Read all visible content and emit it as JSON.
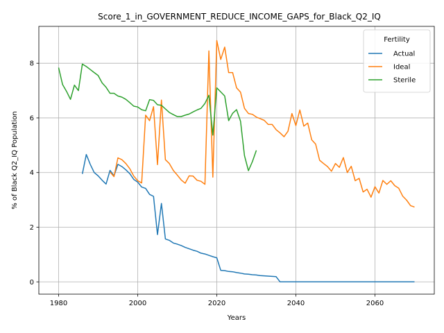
{
  "chart_data": {
    "type": "line",
    "title": "Score_1_in_GOVERNMENT_REDUCE_INCOME_GAPS_for_Black_Q2_IQ",
    "xlabel": "Years",
    "ylabel": "% of Black Q2_IQ Population",
    "xlim": [
      1975,
      2075
    ],
    "ylim": [
      -0.45,
      9.35
    ],
    "xticks": [
      1980,
      2000,
      2020,
      2040,
      2060
    ],
    "yticks": [
      0,
      2,
      4,
      6,
      8
    ],
    "grid": true,
    "legend": {
      "title": "Fertility",
      "placement": "top-right"
    },
    "series": [
      {
        "name": "Actual",
        "color": "#1f77b4",
        "points": [
          [
            1986,
            3.95
          ],
          [
            1987,
            4.66
          ],
          [
            1988,
            4.3
          ],
          [
            1989,
            4.0
          ],
          [
            1990,
            3.88
          ],
          [
            1991,
            3.72
          ],
          [
            1992,
            3.58
          ],
          [
            1993,
            4.08
          ],
          [
            1994,
            3.88
          ],
          [
            1995,
            4.3
          ],
          [
            1996,
            4.22
          ],
          [
            1997,
            4.1
          ],
          [
            1998,
            3.96
          ],
          [
            1999,
            3.75
          ],
          [
            2000,
            3.65
          ],
          [
            2001,
            3.47
          ],
          [
            2002,
            3.42
          ],
          [
            2003,
            3.2
          ],
          [
            2004,
            3.13
          ],
          [
            2005,
            1.73
          ],
          [
            2006,
            2.87
          ],
          [
            2007,
            1.57
          ],
          [
            2008,
            1.52
          ],
          [
            2009,
            1.42
          ],
          [
            2010,
            1.38
          ],
          [
            2011,
            1.33
          ],
          [
            2012,
            1.26
          ],
          [
            2013,
            1.21
          ],
          [
            2014,
            1.16
          ],
          [
            2015,
            1.12
          ],
          [
            2016,
            1.05
          ],
          [
            2017,
            1.02
          ],
          [
            2018,
            0.97
          ],
          [
            2019,
            0.92
          ],
          [
            2020,
            0.88
          ],
          [
            2021,
            0.42
          ],
          [
            2022,
            0.41
          ],
          [
            2023,
            0.38
          ],
          [
            2024,
            0.37
          ],
          [
            2025,
            0.34
          ],
          [
            2026,
            0.32
          ],
          [
            2027,
            0.29
          ],
          [
            2028,
            0.28
          ],
          [
            2029,
            0.26
          ],
          [
            2030,
            0.25
          ],
          [
            2031,
            0.23
          ],
          [
            2032,
            0.22
          ],
          [
            2033,
            0.21
          ],
          [
            2034,
            0.2
          ],
          [
            2035,
            0.19
          ],
          [
            2036,
            0.0
          ],
          [
            2040,
            0.0
          ],
          [
            2050,
            0.0
          ],
          [
            2060,
            0.0
          ],
          [
            2070,
            0.0
          ]
        ]
      },
      {
        "name": "Ideal",
        "color": "#ff7f0e",
        "points": [
          [
            1993,
            4.02
          ],
          [
            1994,
            3.85
          ],
          [
            1995,
            4.54
          ],
          [
            1996,
            4.47
          ],
          [
            1997,
            4.33
          ],
          [
            1998,
            4.14
          ],
          [
            1999,
            3.87
          ],
          [
            2000,
            3.7
          ],
          [
            2001,
            3.62
          ],
          [
            2002,
            6.1
          ],
          [
            2003,
            5.9
          ],
          [
            2004,
            6.41
          ],
          [
            2005,
            4.29
          ],
          [
            2006,
            6.65
          ],
          [
            2007,
            4.47
          ],
          [
            2008,
            4.33
          ],
          [
            2009,
            4.08
          ],
          [
            2010,
            3.91
          ],
          [
            2011,
            3.73
          ],
          [
            2012,
            3.61
          ],
          [
            2013,
            3.88
          ],
          [
            2014,
            3.87
          ],
          [
            2015,
            3.72
          ],
          [
            2016,
            3.68
          ],
          [
            2017,
            3.57
          ],
          [
            2018,
            8.45
          ],
          [
            2019,
            3.83
          ],
          [
            2020,
            8.83
          ],
          [
            2021,
            8.14
          ],
          [
            2022,
            8.59
          ],
          [
            2023,
            7.66
          ],
          [
            2024,
            7.66
          ],
          [
            2025,
            7.1
          ],
          [
            2026,
            6.94
          ],
          [
            2027,
            6.35
          ],
          [
            2028,
            6.16
          ],
          [
            2029,
            6.13
          ],
          [
            2030,
            6.03
          ],
          [
            2031,
            5.97
          ],
          [
            2032,
            5.91
          ],
          [
            2033,
            5.76
          ],
          [
            2034,
            5.76
          ],
          [
            2035,
            5.57
          ],
          [
            2036,
            5.45
          ],
          [
            2037,
            5.31
          ],
          [
            2038,
            5.51
          ],
          [
            2039,
            6.16
          ],
          [
            2040,
            5.72
          ],
          [
            2041,
            6.29
          ],
          [
            2042,
            5.7
          ],
          [
            2043,
            5.81
          ],
          [
            2044,
            5.2
          ],
          [
            2045,
            5.04
          ],
          [
            2046,
            4.45
          ],
          [
            2047,
            4.33
          ],
          [
            2048,
            4.22
          ],
          [
            2049,
            4.05
          ],
          [
            2050,
            4.33
          ],
          [
            2051,
            4.19
          ],
          [
            2052,
            4.55
          ],
          [
            2053,
            4.0
          ],
          [
            2054,
            4.23
          ],
          [
            2055,
            3.7
          ],
          [
            2056,
            3.79
          ],
          [
            2057,
            3.29
          ],
          [
            2058,
            3.39
          ],
          [
            2059,
            3.1
          ],
          [
            2060,
            3.48
          ],
          [
            2061,
            3.25
          ],
          [
            2062,
            3.71
          ],
          [
            2063,
            3.57
          ],
          [
            2064,
            3.7
          ],
          [
            2065,
            3.52
          ],
          [
            2066,
            3.43
          ],
          [
            2067,
            3.14
          ],
          [
            2068,
            2.99
          ],
          [
            2069,
            2.79
          ],
          [
            2070,
            2.74
          ]
        ]
      },
      {
        "name": "Sterile",
        "color": "#2ca02c",
        "points": [
          [
            1980,
            7.84
          ],
          [
            1981,
            7.22
          ],
          [
            1982,
            6.97
          ],
          [
            1983,
            6.68
          ],
          [
            1984,
            7.2
          ],
          [
            1985,
            7.0
          ],
          [
            1986,
            7.97
          ],
          [
            1987,
            7.88
          ],
          [
            1988,
            7.77
          ],
          [
            1989,
            7.66
          ],
          [
            1990,
            7.55
          ],
          [
            1991,
            7.28
          ],
          [
            1992,
            7.12
          ],
          [
            1993,
            6.9
          ],
          [
            1994,
            6.9
          ],
          [
            1995,
            6.8
          ],
          [
            1996,
            6.76
          ],
          [
            1997,
            6.68
          ],
          [
            1998,
            6.56
          ],
          [
            1999,
            6.43
          ],
          [
            2000,
            6.4
          ],
          [
            2001,
            6.3
          ],
          [
            2002,
            6.26
          ],
          [
            2003,
            6.67
          ],
          [
            2004,
            6.64
          ],
          [
            2005,
            6.48
          ],
          [
            2006,
            6.46
          ],
          [
            2007,
            6.33
          ],
          [
            2008,
            6.2
          ],
          [
            2009,
            6.12
          ],
          [
            2010,
            6.05
          ],
          [
            2011,
            6.05
          ],
          [
            2012,
            6.1
          ],
          [
            2013,
            6.14
          ],
          [
            2014,
            6.22
          ],
          [
            2015,
            6.29
          ],
          [
            2016,
            6.35
          ],
          [
            2017,
            6.53
          ],
          [
            2018,
            6.83
          ],
          [
            2019,
            5.37
          ],
          [
            2020,
            7.1
          ],
          [
            2021,
            6.95
          ],
          [
            2022,
            6.8
          ],
          [
            2023,
            5.9
          ],
          [
            2024,
            6.17
          ],
          [
            2025,
            6.3
          ],
          [
            2026,
            5.88
          ],
          [
            2027,
            4.62
          ],
          [
            2028,
            4.07
          ],
          [
            2029,
            4.4
          ],
          [
            2030,
            4.81
          ]
        ]
      }
    ]
  }
}
